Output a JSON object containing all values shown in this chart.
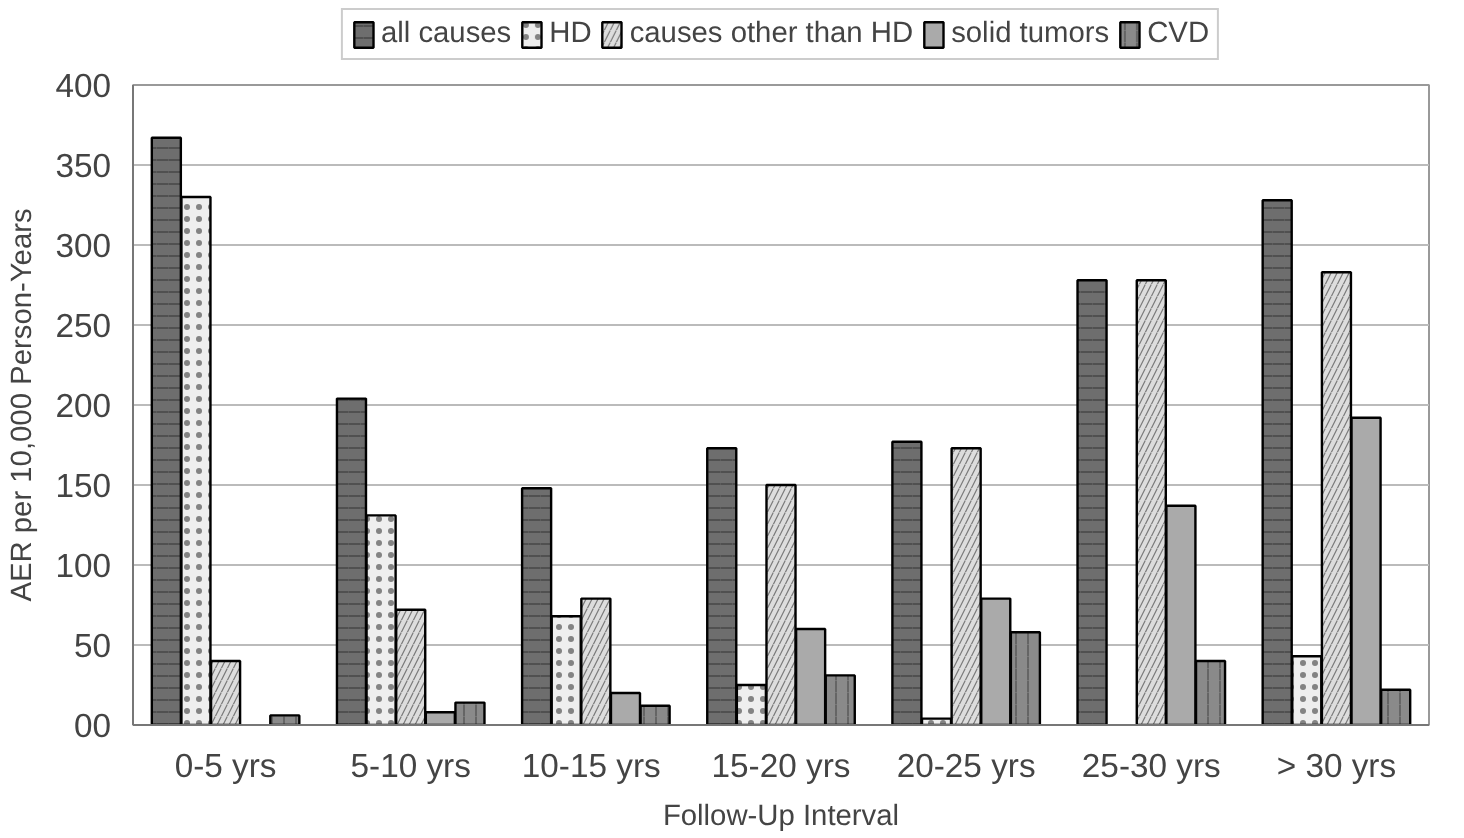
{
  "chart_data": {
    "type": "bar",
    "xlabel": "Follow-Up Interval",
    "ylabel": "AER per 10,000 Person-Years",
    "categories": [
      "0-5 yrs",
      "5-10 yrs",
      "10-15  yrs",
      "15-20 yrs",
      "20-25 yrs",
      "25-30 yrs",
      "> 30 yrs"
    ],
    "series": [
      {
        "name": "all causes",
        "color": "#6e6e6e",
        "values": [
          367,
          204,
          148,
          173,
          177,
          278,
          328
        ]
      },
      {
        "name": "HD",
        "color": "#eeeeee",
        "values": [
          330,
          131,
          68,
          25,
          4,
          null,
          43
        ]
      },
      {
        "name": "causes other than HD",
        "color": "#dddddd",
        "values": [
          40,
          72,
          79,
          150,
          173,
          278,
          283
        ]
      },
      {
        "name": "solid tumors",
        "color": "#aaaaaa",
        "values": [
          null,
          8,
          20,
          60,
          79,
          137,
          192
        ]
      },
      {
        "name": "CVD",
        "color": "#8a8a8a",
        "values": [
          6,
          14,
          12,
          31,
          58,
          40,
          22
        ]
      }
    ],
    "ylim": [
      0,
      400
    ],
    "yticks": [
      {
        "value": 0,
        "label": "00"
      },
      50,
      100,
      150,
      200,
      250,
      300,
      350,
      400
    ],
    "grid": "y",
    "legend": "top"
  }
}
